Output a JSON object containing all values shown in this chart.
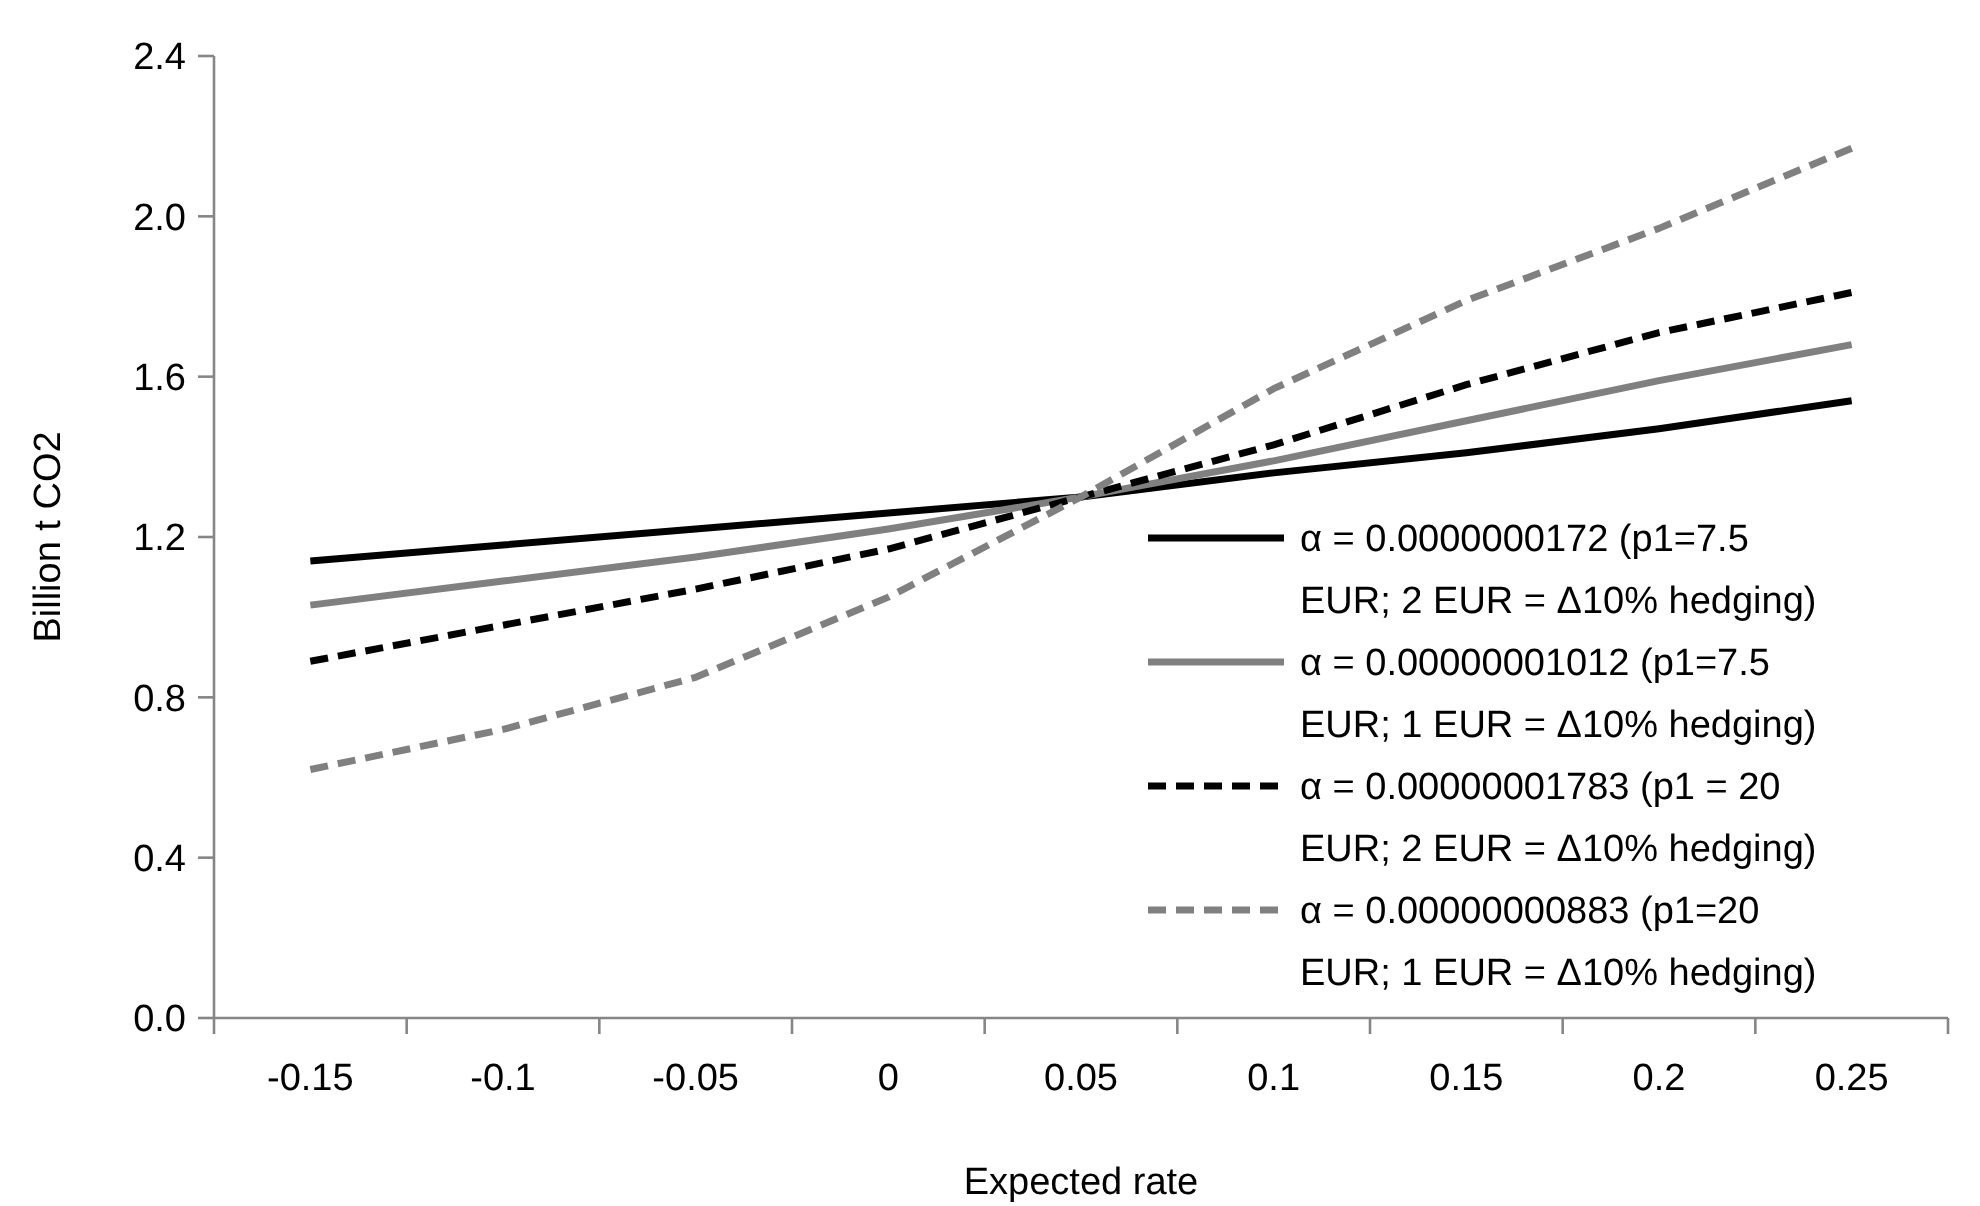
{
  "chart_data": {
    "type": "line",
    "xlabel": "Expected rate",
    "ylabel": "Billion t CO2",
    "categories": [
      "-0.15",
      "-0.1",
      "-0.05",
      "0",
      "0.05",
      "0.1",
      "0.15",
      "0.2",
      "0.25"
    ],
    "ylim": [
      0,
      2.4
    ],
    "yticks": [
      {
        "value": 0,
        "label": "0.0"
      },
      {
        "value": 0.4,
        "label": "0.4"
      },
      {
        "value": 0.8,
        "label": "0.8"
      },
      {
        "value": 1.2,
        "label": "1.2"
      },
      {
        "value": 1.6,
        "label": "1.6"
      },
      {
        "value": 2.0,
        "label": "2.0"
      },
      {
        "value": 2.4,
        "label": "2.4"
      }
    ],
    "grid": false,
    "legend": "right",
    "marker": "none",
    "series": [
      {
        "name": "α = 0.0000000172 (p1=7.5 EUR; 2 EUR = Δ10% hedging)",
        "color": "#000000",
        "line_style": "solid",
        "values": [
          1.14,
          1.18,
          1.22,
          1.26,
          1.3,
          1.36,
          1.41,
          1.47,
          1.54
        ]
      },
      {
        "name": "α = 0.00000001012 (p1=7.5 EUR; 1 EUR = Δ10% hedging)",
        "color": "#808080",
        "line_style": "solid",
        "values": [
          1.03,
          1.09,
          1.15,
          1.22,
          1.3,
          1.39,
          1.49,
          1.59,
          1.68
        ]
      },
      {
        "name": "α = 0.00000001783 (p1 = 20 EUR; 2 EUR = Δ10% hedging)",
        "color": "#000000",
        "line_style": "dashed",
        "values": [
          0.89,
          0.98,
          1.07,
          1.17,
          1.3,
          1.43,
          1.58,
          1.71,
          1.81
        ]
      },
      {
        "name": "α = 0.00000000883 (p1=20 EUR; 1 EUR = Δ10% hedging)",
        "color": "#808080",
        "line_style": "dashed",
        "values": [
          0.62,
          0.72,
          0.85,
          1.05,
          1.3,
          1.57,
          1.79,
          1.97,
          2.17
        ]
      }
    ]
  }
}
